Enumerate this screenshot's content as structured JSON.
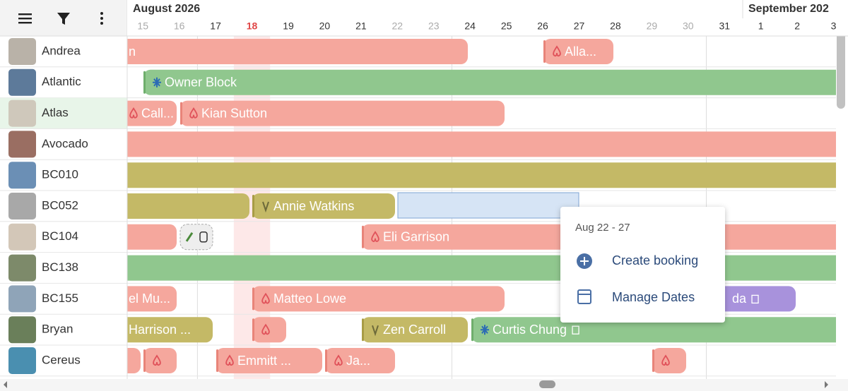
{
  "header": {
    "month": "August 2026",
    "next_month": "September 202",
    "days": [
      "15",
      "16",
      "17",
      "18",
      "19",
      "20",
      "21",
      "22",
      "23",
      "24",
      "25",
      "26",
      "27",
      "28",
      "29",
      "30",
      "31",
      "1",
      "2",
      "3"
    ]
  },
  "rows": [
    {
      "name": "Andrea",
      "bookings": [
        "n",
        "Alla..."
      ]
    },
    {
      "name": "Atlantic",
      "bookings": [
        "Owner Block"
      ]
    },
    {
      "name": "Atlas",
      "bookings": [
        "Call...",
        "Kian Sutton"
      ]
    },
    {
      "name": "Avocado",
      "bookings": []
    },
    {
      "name": "BC010",
      "bookings": []
    },
    {
      "name": "BC052",
      "bookings": [
        "Annie Watkins"
      ]
    },
    {
      "name": "BC104",
      "bookings": [
        "Eli Garrison"
      ]
    },
    {
      "name": "BC138",
      "bookings": []
    },
    {
      "name": "BC155",
      "bookings": [
        "el Mu...",
        "Matteo Lowe",
        "da"
      ]
    },
    {
      "name": "Bryan",
      "bookings": [
        "Harrison ...",
        "Zen Carroll",
        "Curtis Chung"
      ]
    },
    {
      "name": "Cereus",
      "bookings": [
        "Emmitt ...",
        "Ja..."
      ]
    }
  ],
  "popup": {
    "dates": "Aug 22 - 27",
    "actions": [
      "Create booking",
      "Manage Dates"
    ]
  }
}
